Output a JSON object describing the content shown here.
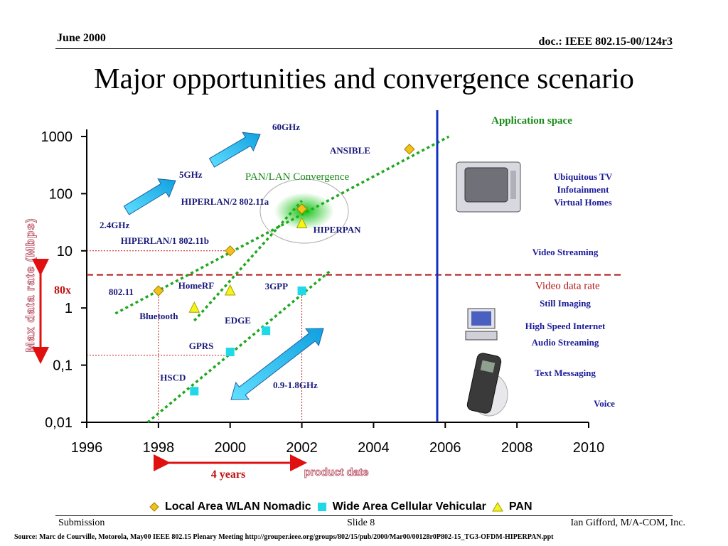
{
  "header": {
    "date": "June 2000",
    "doc": "doc.: IEEE 802.15-00/124r3"
  },
  "title": "Major opportunities and convergence scenario",
  "footer": {
    "left": "Submission",
    "middle": "Slide 8",
    "right": "Ian Gifford, M/A-COM, Inc.",
    "source": "Source: Marc de Courville, Motorola, May00 IEEE 802.15 Plenary Meeting  http://grouper.ieee.org/groups/802/15/pub/2000/Mar00/00128r0P802-15_TG3-OFDM-HIPERPAN.ppt"
  },
  "colors": {
    "wlan": "#f2c21b",
    "cellular": "#20d8e8",
    "pan": "#f5f51a",
    "trend": "#1fa81f",
    "axis": "#000000",
    "divider": "#1030c0",
    "video_line": "#b01818",
    "arrow_red": "#e01010"
  },
  "chart_data": {
    "type": "scatter",
    "x_ticks": [
      "1996",
      "1998",
      "2000",
      "2002",
      "2004",
      "2006",
      "2008",
      "2010"
    ],
    "y_ticks": [
      "1000",
      "100",
      "10",
      "1",
      "0,1",
      "0,01"
    ],
    "ylabel": "Max data rate (Mbps)",
    "xlabel": "product date",
    "xlim": [
      1996,
      2010
    ],
    "ylim": [
      0.01,
      1000
    ],
    "yscale": "log",
    "series": [
      {
        "name": "Local Area WLAN Nomadic",
        "marker": "diamond",
        "points": [
          {
            "x": 1998,
            "y": 2,
            "label": "802.11"
          },
          {
            "x": 2000,
            "y": 10,
            "label": "HIPERLAN/1 802.11b"
          },
          {
            "x": 2002,
            "y": 54,
            "label": "HIPERLAN/2 802.11a"
          },
          {
            "x": 2005,
            "y": 600,
            "label": "ANSIBLE"
          }
        ]
      },
      {
        "name": "Wide Area Cellular Vehicular",
        "marker": "square",
        "points": [
          {
            "x": 1999,
            "y": 0.035,
            "label": "HSCD"
          },
          {
            "x": 2000,
            "y": 0.17,
            "label": "GPRS"
          },
          {
            "x": 2001,
            "y": 0.4,
            "label": "EDGE"
          },
          {
            "x": 2002,
            "y": 2,
            "label": "3GPP"
          }
        ]
      },
      {
        "name": "PAN",
        "marker": "triangle",
        "points": [
          {
            "x": 1999,
            "y": 1,
            "label": "Bluetooth"
          },
          {
            "x": 2000,
            "y": 2,
            "label": "HomeRF"
          },
          {
            "x": 2002,
            "y": 30,
            "label": "HIPERPAN"
          }
        ]
      }
    ],
    "trend_lines": [
      {
        "from": {
          "x": 1996.8,
          "y": 0.8
        },
        "to": {
          "x": 2006.1,
          "y": 1000
        }
      },
      {
        "from": {
          "x": 1999,
          "y": 0.6
        },
        "to": {
          "x": 2002,
          "y": 75
        }
      },
      {
        "from": {
          "x": 1997.7,
          "y": 0.01
        },
        "to": {
          "x": 2002.8,
          "y": 4.5
        }
      }
    ],
    "annotations": {
      "convergence": "PAN/LAN Convergence",
      "bands": [
        "2.4GHz",
        "5GHz",
        "60GHz"
      ],
      "cellular_band": "0.9-1.8GHz",
      "video_rate": "Video data rate",
      "factor": "80x",
      "span": "4 years"
    },
    "video_rate_level": 3.8,
    "application_space": {
      "title": "Application space",
      "items": [
        "Ubiquitous TV",
        "Infotainment",
        "Virtual Homes",
        "Video Streaming",
        "Still Imaging",
        "High Speed Internet",
        "Audio Streaming",
        "Text Messaging",
        "Voice"
      ]
    },
    "legend": [
      "Local Area WLAN Nomadic",
      "Wide Area Cellular Vehicular",
      "PAN"
    ]
  }
}
